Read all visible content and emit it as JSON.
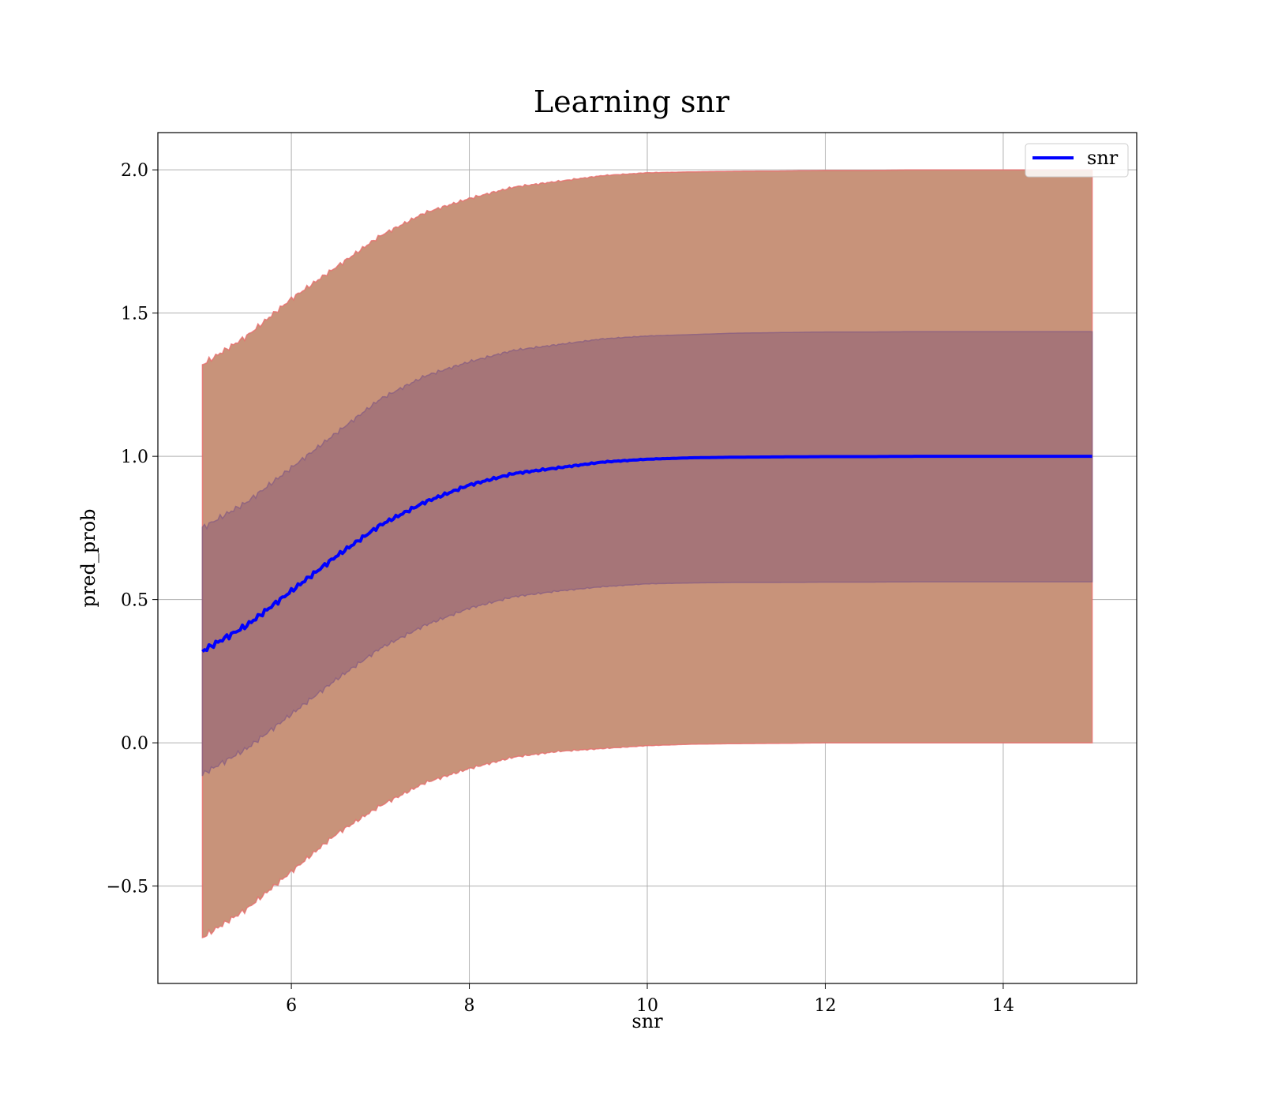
{
  "chart_data": {
    "type": "area",
    "title": "Learning snr",
    "xlabel": "snr",
    "ylabel": "pred_prob",
    "xlim": [
      4.5,
      15.5
    ],
    "ylim": [
      -0.84,
      2.13
    ],
    "x_ticks": [
      6,
      8,
      10,
      12,
      14
    ],
    "y_ticks": [
      -0.5,
      0.0,
      0.5,
      1.0,
      1.5,
      2.0
    ],
    "x_tick_labels": [
      "6",
      "8",
      "10",
      "12",
      "14"
    ],
    "y_tick_labels": [
      "−0.5",
      "0.0",
      "0.5",
      "1.0",
      "1.5",
      "2.0"
    ],
    "grid": true,
    "legend_position": "top-right",
    "x": [
      5.0,
      5.5,
      6.0,
      6.5,
      7.0,
      7.5,
      8.0,
      8.5,
      9.0,
      9.5,
      10.0,
      10.5,
      11.0,
      11.5,
      12.0,
      12.5,
      13.0,
      13.5,
      14.0,
      14.5,
      15.0
    ],
    "series": [
      {
        "name": "snr",
        "color": "#0000ff",
        "values": [
          0.32,
          0.41,
          0.53,
          0.65,
          0.76,
          0.84,
          0.9,
          0.94,
          0.96,
          0.98,
          0.99,
          0.995,
          0.997,
          0.998,
          0.999,
          0.999,
          1.0,
          1.0,
          1.0,
          1.0,
          1.0
        ]
      }
    ],
    "bands": [
      {
        "color": "#c8937a",
        "edge_color": "#e86b6b",
        "lower": [
          -0.68,
          -0.58,
          -0.45,
          -0.32,
          -0.22,
          -0.14,
          -0.09,
          -0.05,
          -0.03,
          -0.02,
          -0.01,
          -0.005,
          -0.003,
          -0.002,
          0.0,
          0.0,
          0.0,
          0.0,
          0.0,
          0.0,
          0.0
        ],
        "upper": [
          1.32,
          1.42,
          1.55,
          1.66,
          1.77,
          1.85,
          1.9,
          1.94,
          1.96,
          1.98,
          1.99,
          1.993,
          1.995,
          1.996,
          1.998,
          1.998,
          2.0,
          2.0,
          2.0,
          2.0,
          2.0
        ]
      },
      {
        "color": "#a07078",
        "edge_color": "#8a5f82",
        "lower": [
          -0.11,
          -0.02,
          0.1,
          0.22,
          0.33,
          0.41,
          0.47,
          0.51,
          0.53,
          0.545,
          0.555,
          0.558,
          0.56,
          0.56,
          0.561,
          0.561,
          0.562,
          0.562,
          0.562,
          0.562,
          0.562
        ],
        "upper": [
          0.75,
          0.84,
          0.96,
          1.08,
          1.2,
          1.28,
          1.33,
          1.37,
          1.39,
          1.41,
          1.42,
          1.425,
          1.43,
          1.432,
          1.434,
          1.434,
          1.435,
          1.435,
          1.435,
          1.435,
          1.435
        ]
      }
    ]
  }
}
